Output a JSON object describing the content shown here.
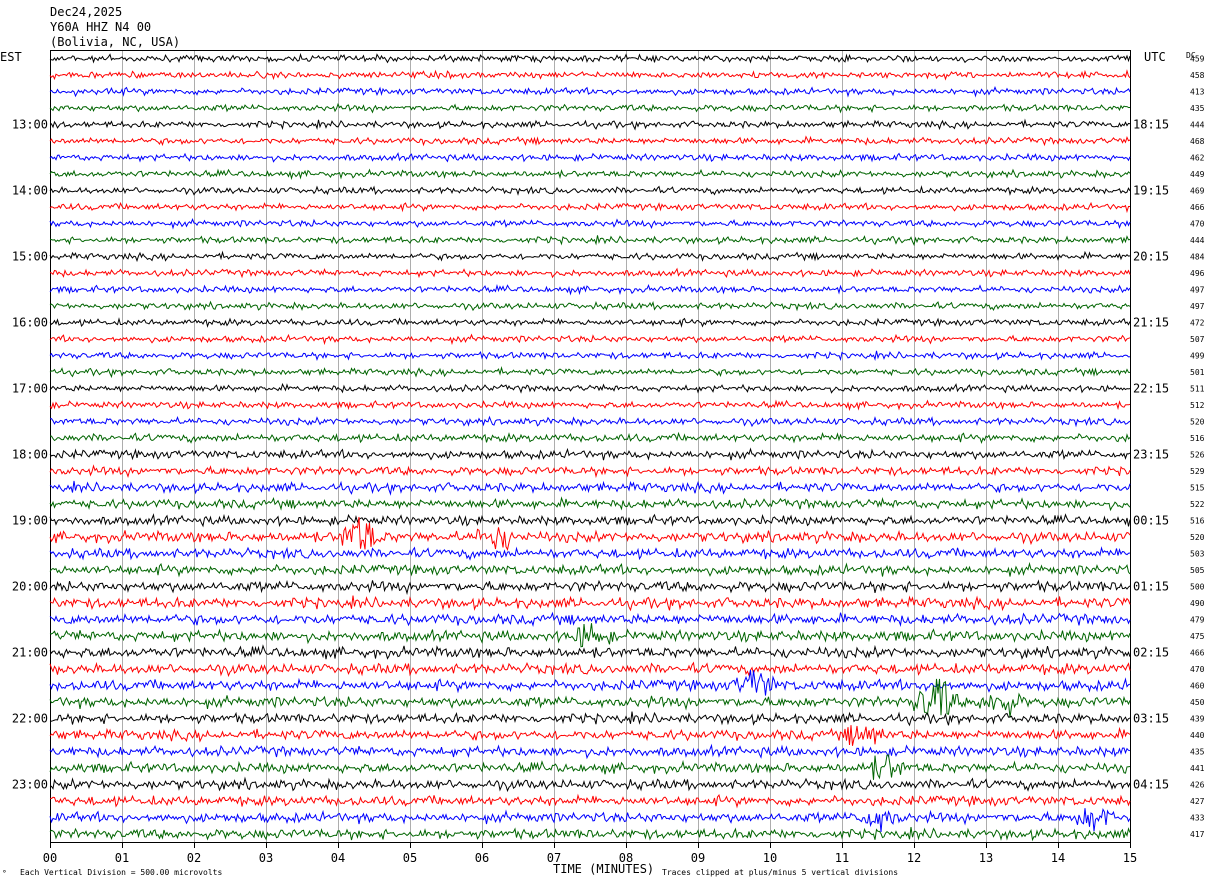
{
  "header": {
    "date": "Dec24,2025",
    "station": "Y60A HHZ N4 00",
    "location": "(Bolivia, NC, USA)"
  },
  "left_timezone": "EST",
  "right_timezone": "UTC",
  "dc_label": "DC",
  "footer": {
    "scale_note": "Each Vertical Division =  500.00 microvolts",
    "clip_note": "Traces clipped at plus/minus 5 vertical divisions",
    "corner_mark": "°"
  },
  "colors": {
    "trace_cycle": [
      "#000000",
      "#ff0000",
      "#0000ff",
      "#006400"
    ],
    "grid": "#999999",
    "frame": "#000000",
    "background": "#ffffff"
  },
  "chart_data": {
    "type": "line",
    "xlabel": "TIME (MINUTES)",
    "x_ticks": [
      "00",
      "01",
      "02",
      "03",
      "04",
      "05",
      "06",
      "07",
      "08",
      "09",
      "10",
      "11",
      "12",
      "13",
      "14",
      "15"
    ],
    "xlim": [
      0,
      15
    ],
    "left_hour_labels": [
      "13:00",
      "14:00",
      "15:00",
      "16:00",
      "17:00",
      "18:00",
      "19:00",
      "20:00",
      "21:00",
      "22:00",
      "23:00"
    ],
    "right_hour_labels": [
      "18:15",
      "19:15",
      "20:15",
      "21:15",
      "22:15",
      "23:15",
      "00:15",
      "01:15",
      "02:15",
      "03:15",
      "04:15"
    ],
    "dc_offsets": [
      459,
      458,
      413,
      435,
      444,
      468,
      462,
      449,
      469,
      466,
      470,
      444,
      484,
      496,
      497,
      497,
      472,
      507,
      499,
      501,
      511,
      512,
      520,
      516,
      526,
      529,
      515,
      522,
      516,
      520,
      503,
      505,
      500,
      490,
      479,
      475,
      466,
      470,
      460,
      450,
      439,
      440,
      435,
      441,
      426,
      427,
      433,
      417
    ],
    "trace_amplitude": [
      1.0,
      1.0,
      1.0,
      1.0,
      1.0,
      1.0,
      1.0,
      1.0,
      1.0,
      1.0,
      1.0,
      1.0,
      1.0,
      1.0,
      1.0,
      1.0,
      1.0,
      1.0,
      1.0,
      1.0,
      1.0,
      1.0,
      1.1,
      1.2,
      1.3,
      1.3,
      1.4,
      1.4,
      1.4,
      1.6,
      1.5,
      1.5,
      1.6,
      1.6,
      1.6,
      1.6,
      1.6,
      1.6,
      1.6,
      1.6,
      1.5,
      1.5,
      1.5,
      1.5,
      1.5,
      1.5,
      1.5,
      1.5
    ],
    "events": [
      {
        "row": 29,
        "minute": 4.3,
        "amplitude": 7
      },
      {
        "row": 29,
        "minute": 6.2,
        "amplitude": 4
      },
      {
        "row": 35,
        "minute": 7.5,
        "amplitude": 4
      },
      {
        "row": 38,
        "minute": 9.8,
        "amplitude": 5
      },
      {
        "row": 39,
        "minute": 12.3,
        "amplitude": 9
      },
      {
        "row": 39,
        "minute": 13.2,
        "amplitude": 5
      },
      {
        "row": 41,
        "minute": 11.3,
        "amplitude": 4
      },
      {
        "row": 43,
        "minute": 11.6,
        "amplitude": 4
      },
      {
        "row": 46,
        "minute": 11.5,
        "amplitude": 4
      },
      {
        "row": 46,
        "minute": 14.5,
        "amplitude": 4
      }
    ]
  }
}
